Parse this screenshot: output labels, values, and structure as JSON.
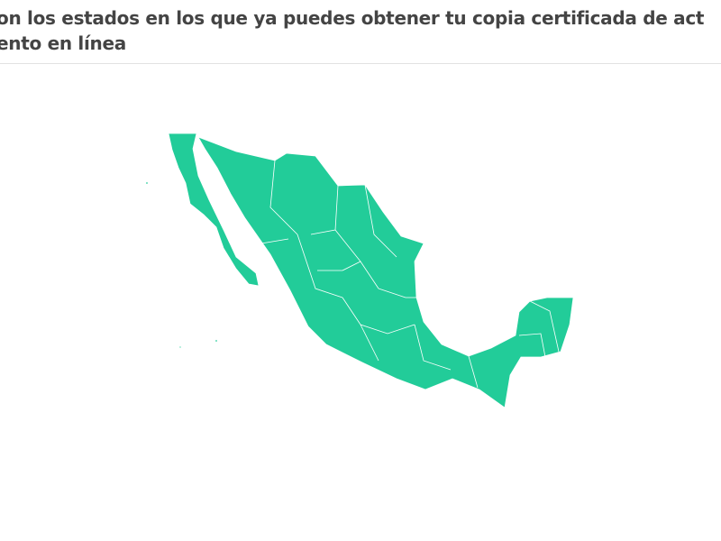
{
  "title": {
    "line1": "on los estados en los que ya puedes obtener tu copia certificada de act",
    "line2": "ento en línea"
  },
  "map": {
    "region": "Mexico",
    "fill_color": "#22cc99",
    "border_color": "#ffffff"
  }
}
